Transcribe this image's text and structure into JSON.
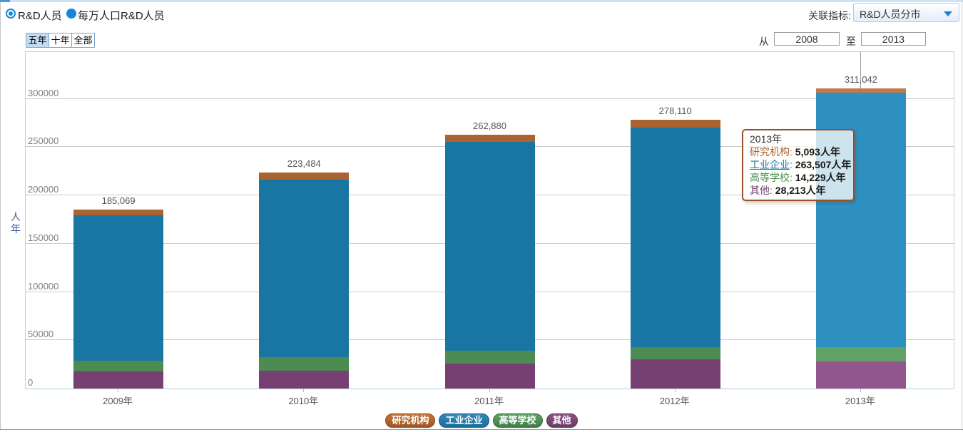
{
  "header": {
    "radios": [
      {
        "label": "R&D人员",
        "selected": true
      },
      {
        "label": "每万人口R&D人员",
        "selected": false
      }
    ],
    "related_label": "关联指标:",
    "related_value": "R&D人员分市",
    "period_buttons": [
      {
        "label": "五年",
        "active": true
      },
      {
        "label": "十年",
        "active": false
      },
      {
        "label": "全部",
        "active": false
      }
    ],
    "range": {
      "from_label": "从",
      "from_value": "2008",
      "to_label": "至",
      "to_value": "2013"
    }
  },
  "chart_data": {
    "type": "bar",
    "stacked": true,
    "ylabel": "人年",
    "categories": [
      "2009年",
      "2010年",
      "2011年",
      "2012年",
      "2013年"
    ],
    "totals_text": [
      "185,069",
      "223,484",
      "262,880",
      "278,110",
      "311,042"
    ],
    "totals": [
      185069,
      223484,
      262880,
      278110,
      311042
    ],
    "yticks": [
      0,
      50000,
      100000,
      150000,
      200000,
      250000,
      300000
    ],
    "ylim": [
      0,
      348000
    ],
    "grid": true,
    "highlighted_category": "2013年",
    "series": [
      {
        "name": "其他",
        "color": "#764172",
        "hover_color": "#91578d",
        "values": [
          17500,
          18784,
          26180,
          29910,
          28213
        ]
      },
      {
        "name": "高等学校",
        "color": "#4c8b52",
        "hover_color": "#62a267",
        "values": [
          11300,
          13500,
          13100,
          12800,
          14229
        ]
      },
      {
        "name": "工业企业",
        "color": "#1976a3",
        "hover_color": "#2e90c1",
        "values": [
          150369,
          183800,
          216200,
          227300,
          263507
        ]
      },
      {
        "name": "研究机构",
        "color": "#ab6332",
        "hover_color": "#c07b4a",
        "values": [
          5900,
          7400,
          7400,
          8100,
          5093
        ]
      }
    ]
  },
  "tooltip": {
    "title": "2013年",
    "rows": [
      {
        "label": "研究机构",
        "value": "5,093",
        "suffix": "人年",
        "color": "#ab6332",
        "underline": false
      },
      {
        "label": "工业企业",
        "value": "263,507",
        "suffix": "人年",
        "color": "#1976a3",
        "underline": true
      },
      {
        "label": "高等学校",
        "value": "14,229",
        "suffix": "人年",
        "color": "#4c8b52",
        "underline": false
      },
      {
        "label": "其他",
        "value": "28,213",
        "suffix": "人年",
        "color": "#764172",
        "underline": false
      }
    ]
  },
  "legend": [
    {
      "label": "研究机构",
      "top": "#c5763a",
      "bottom": "#9e5524",
      "border": "#8a4a1f"
    },
    {
      "label": "工业企业",
      "top": "#3388b8",
      "bottom": "#1a6e9c",
      "border": "#165e86"
    },
    {
      "label": "高等学校",
      "top": "#5ea264",
      "bottom": "#417e47",
      "border": "#38683d"
    },
    {
      "label": "其他",
      "top": "#8a5385",
      "bottom": "#693c66",
      "border": "#5a3358"
    }
  ]
}
